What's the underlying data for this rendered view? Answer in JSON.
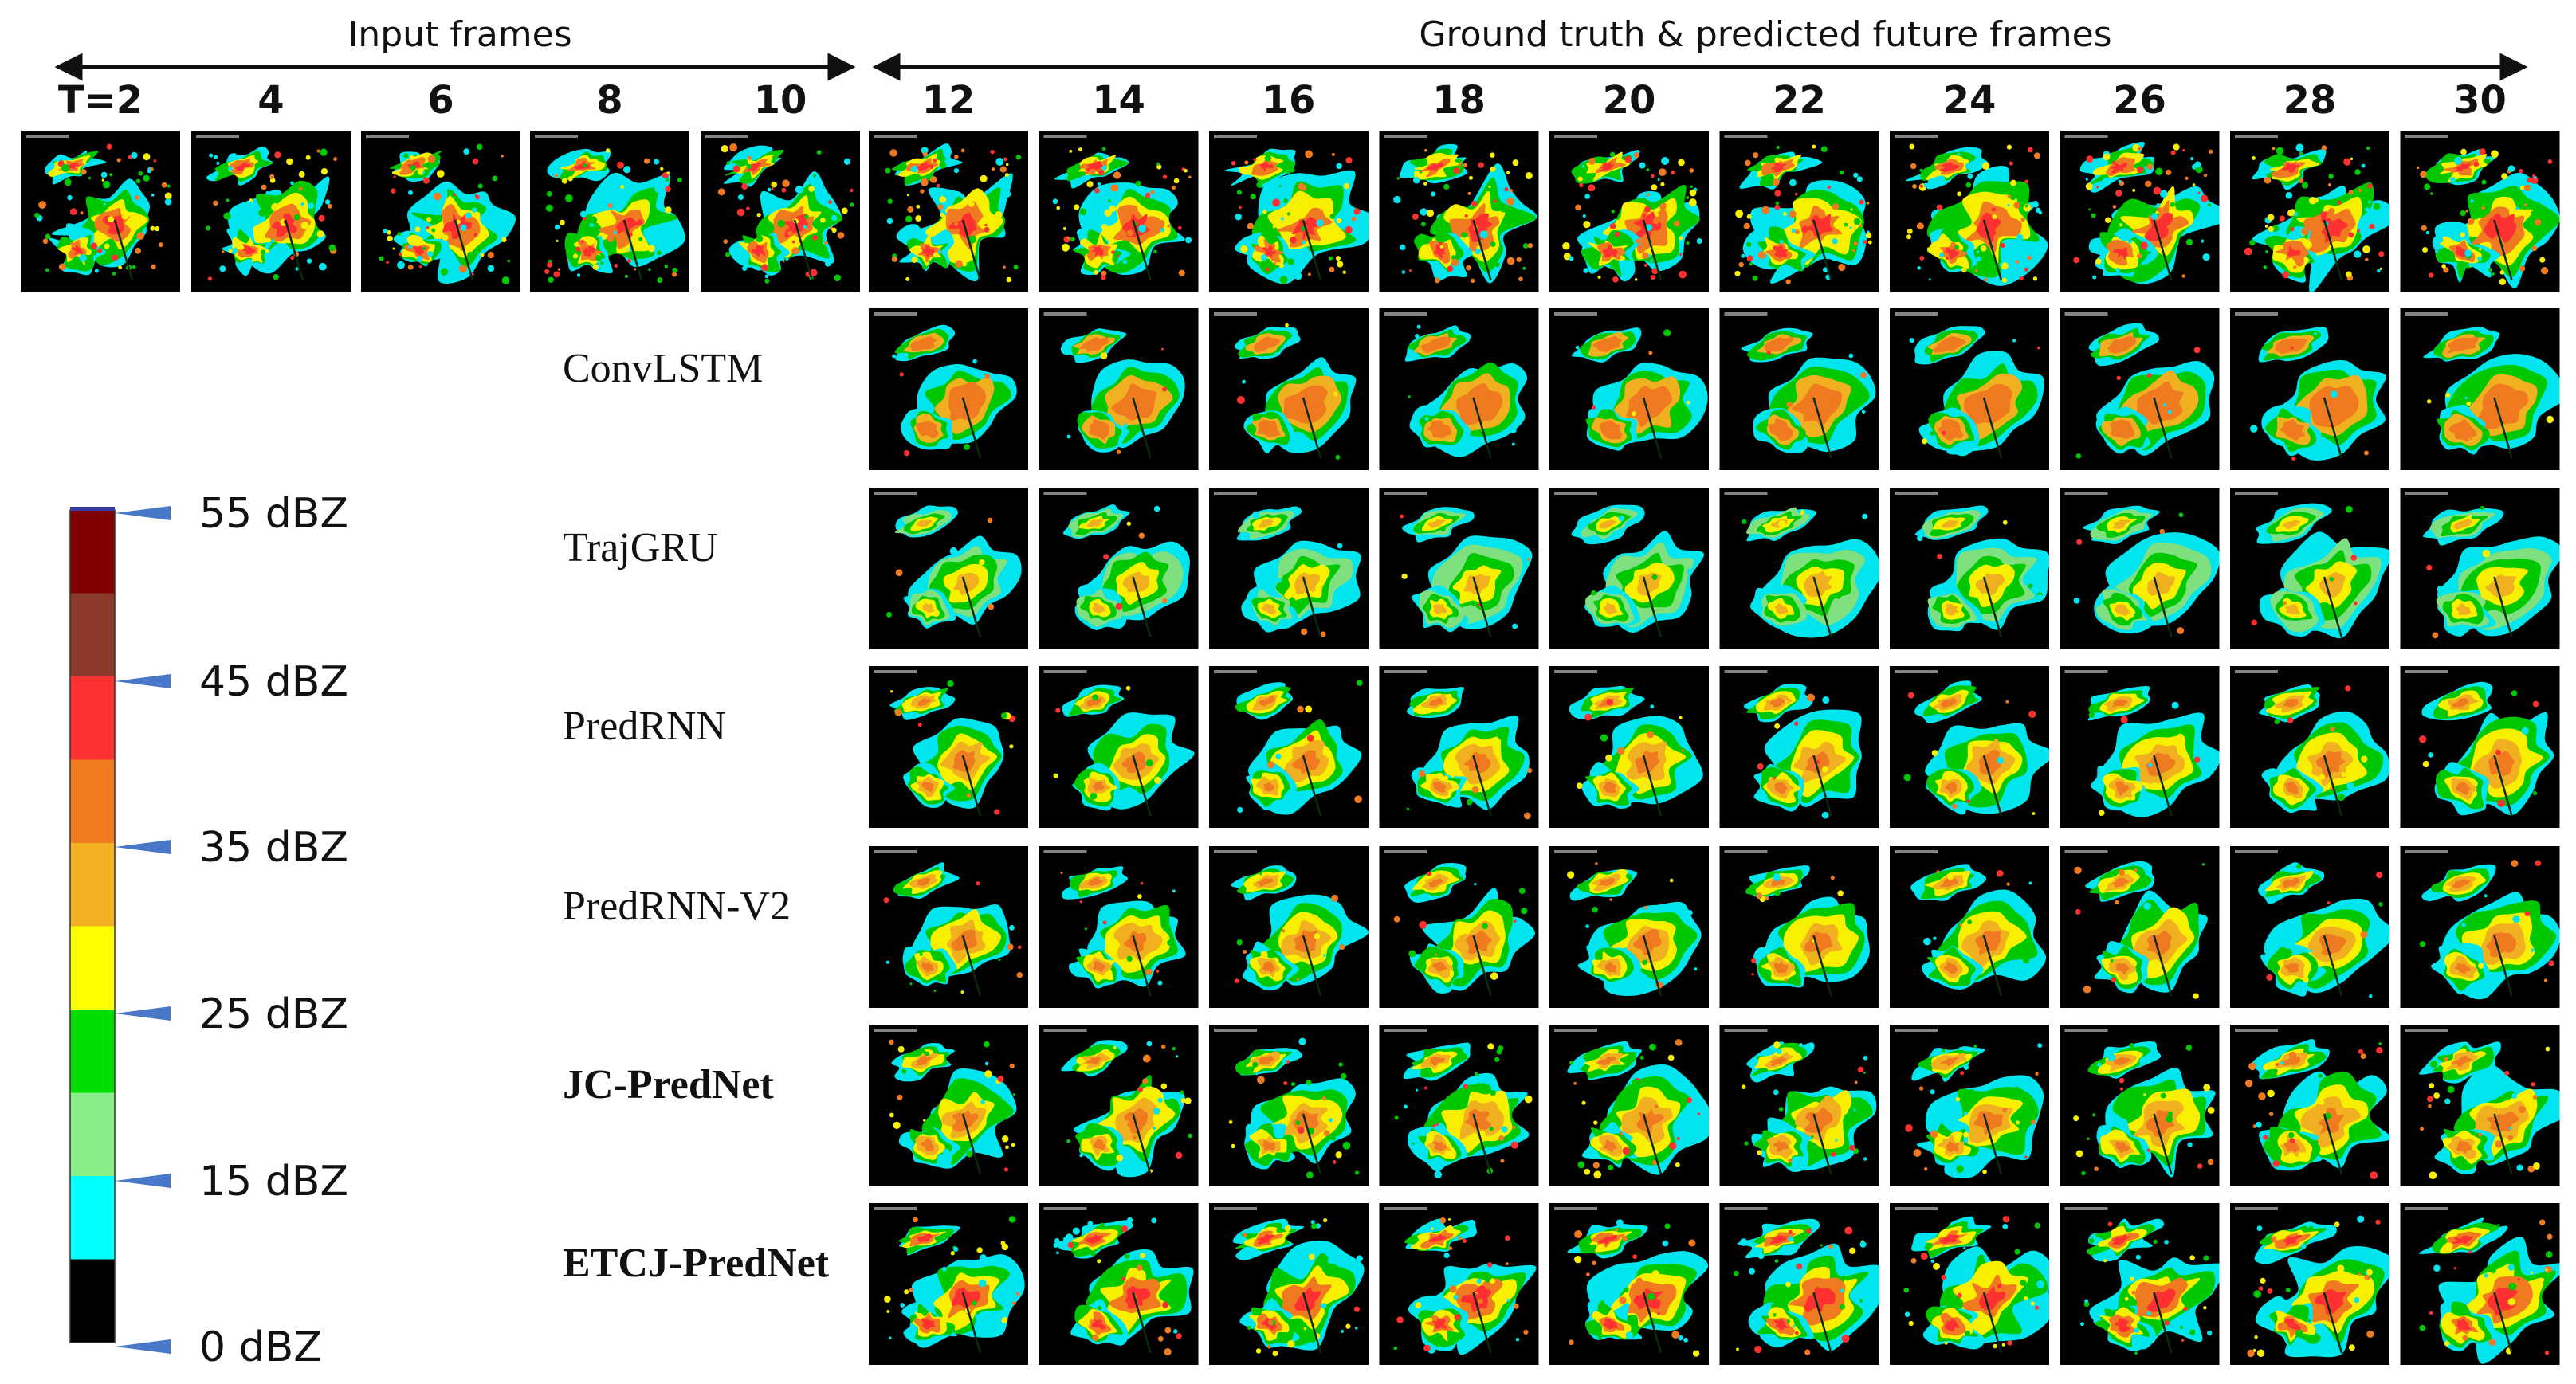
{
  "header": {
    "input_label": "Input frames",
    "future_label": "Ground truth & predicted future frames"
  },
  "time_steps": [
    "T=2",
    "4",
    "6",
    "8",
    "10",
    "12",
    "14",
    "16",
    "18",
    "20",
    "22",
    "24",
    "26",
    "28",
    "30"
  ],
  "input_count": 5,
  "models": [
    {
      "name": "ConvLSTM",
      "bold": false,
      "style": "convlstm"
    },
    {
      "name": "TrajGRU",
      "bold": false,
      "style": "trajgru"
    },
    {
      "name": "PredRNN",
      "bold": false,
      "style": "predrnn"
    },
    {
      "name": "PredRNN-V2",
      "bold": false,
      "style": "predrnnv2"
    },
    {
      "name": "JC-PredNet",
      "bold": true,
      "style": "jcprednet"
    },
    {
      "name": "ETCJ-PredNet",
      "bold": true,
      "style": "etcj"
    }
  ],
  "colorbar": {
    "bands": [
      "#800000",
      "#8b3a2a",
      "#ff3030",
      "#f07a20",
      "#f0b020",
      "#ffff00",
      "#00dd00",
      "#88ee88",
      "#00ffff",
      "#000000"
    ],
    "labels": [
      "55 dBZ",
      "45 dBZ",
      "35 dBZ",
      "25 dBZ",
      "15 dBZ",
      "0  dBZ"
    ],
    "marker_color": "#4a78c8"
  },
  "radar_colors": {
    "background": "#000000",
    "cyan": "#00e5ee",
    "light_green": "#7fe080",
    "green": "#00c800",
    "yellow": "#f8f000",
    "amber": "#f0b020",
    "orange": "#f07a20",
    "red": "#ff3030",
    "dark_red": "#a01010"
  }
}
